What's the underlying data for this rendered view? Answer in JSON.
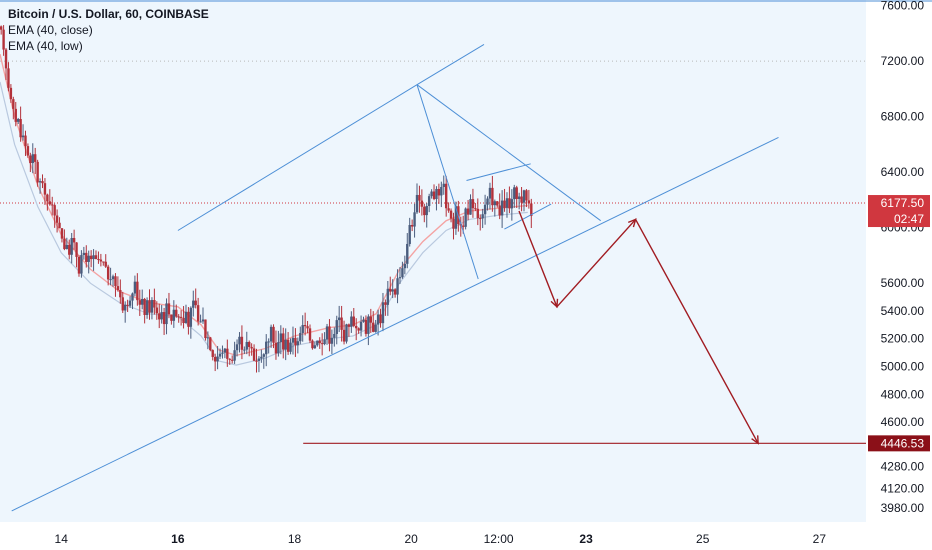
{
  "legend": {
    "title": "Bitcoin / U.S. Dollar, 60, COINBASE",
    "ema1": "EMA (40, close)",
    "ema2": "EMA (40, low)"
  },
  "colors": {
    "chart_bg": "#eef6fd",
    "axis_bg": "#ffffff",
    "up_candle": "#4a5d7e",
    "down_candle": "#b3313a",
    "ema_close": "#f4a3a3",
    "ema_low": "#b9c9df",
    "trendline": "#4d8fd6",
    "arrow": "#a11c22",
    "current_price_line": "#d0373f",
    "current_price_tag": "#d0373f",
    "target_tag": "#8b1018",
    "grid_dotted": "#b9b9b9"
  },
  "chart_data": {
    "type": "candlestick",
    "title": "Bitcoin / U.S. Dollar, 60, COINBASE",
    "xlabel": "",
    "ylabel": "",
    "x_ticks": [
      "14",
      "16",
      "18",
      "20",
      "12:00",
      "23",
      "25",
      "27"
    ],
    "y_ticks": [
      3980.0,
      4120.0,
      4280.0,
      4600.0,
      4800.0,
      5000.0,
      5200.0,
      5400.0,
      5600.0,
      6000.0,
      6400.0,
      6800.0,
      7200.0,
      7600.0
    ],
    "ylim": [
      3880,
      7640
    ],
    "x_range_days": [
      12.95,
      27.8
    ],
    "current_price": {
      "value": 6177.5,
      "label": "6177.50",
      "countdown": "02:47"
    },
    "target_price": {
      "value": 4446.53,
      "label": "4446.53"
    },
    "dotted_level": 7200,
    "series": [
      {
        "name": "EMA (40, close)",
        "points": [
          [
            12.95,
            7250
          ],
          [
            13.2,
            6800
          ],
          [
            13.6,
            6300
          ],
          [
            14.0,
            5950
          ],
          [
            14.5,
            5700
          ],
          [
            15.0,
            5540
          ],
          [
            15.5,
            5460
          ],
          [
            16.0,
            5430
          ],
          [
            16.4,
            5300
          ],
          [
            16.7,
            5120
          ],
          [
            17.0,
            5080
          ],
          [
            17.5,
            5130
          ],
          [
            18.0,
            5220
          ],
          [
            18.6,
            5280
          ],
          [
            19.0,
            5300
          ],
          [
            19.4,
            5380
          ],
          [
            19.8,
            5700
          ],
          [
            20.2,
            5900
          ],
          [
            20.6,
            6050
          ],
          [
            21.0,
            6120
          ],
          [
            21.5,
            6140
          ],
          [
            22.0,
            6160
          ]
        ]
      },
      {
        "name": "EMA (40, low)",
        "points": [
          [
            12.95,
            7050
          ],
          [
            13.2,
            6600
          ],
          [
            13.6,
            6150
          ],
          [
            14.0,
            5820
          ],
          [
            14.5,
            5600
          ],
          [
            15.0,
            5460
          ],
          [
            15.5,
            5380
          ],
          [
            16.0,
            5360
          ],
          [
            16.4,
            5220
          ],
          [
            16.7,
            5040
          ],
          [
            17.0,
            5010
          ],
          [
            17.5,
            5060
          ],
          [
            18.0,
            5150
          ],
          [
            18.6,
            5200
          ],
          [
            19.0,
            5220
          ],
          [
            19.4,
            5300
          ],
          [
            19.8,
            5600
          ],
          [
            20.2,
            5820
          ],
          [
            20.6,
            5980
          ],
          [
            21.0,
            6060
          ],
          [
            21.5,
            6090
          ],
          [
            22.0,
            6110
          ]
        ]
      }
    ],
    "annotations": {
      "channel_upper": [
        [
          16.0,
          5980
        ],
        [
          20.1,
          7030
        ],
        [
          21.25,
          7320
        ]
      ],
      "channel_lower": [
        [
          13.15,
          3960
        ],
        [
          26.3,
          6650
        ]
      ],
      "triangle_upper": [
        [
          20.1,
          7030
        ],
        [
          23.25,
          6050
        ]
      ],
      "triangle_lower": [
        [
          20.1,
          7030
        ],
        [
          21.15,
          5630
        ]
      ],
      "wedge_upper": [
        [
          20.95,
          6340
        ],
        [
          22.05,
          6460
        ]
      ],
      "wedge_lower": [
        [
          21.6,
          5990
        ],
        [
          22.4,
          6170
        ]
      ],
      "projection_arrow": [
        [
          21.85,
          6120
        ],
        [
          22.5,
          5430
        ],
        [
          23.85,
          6060
        ],
        [
          25.95,
          4446.53
        ]
      ],
      "target_line": [
        [
          18.15,
          4446.53
        ],
        [
          27.8,
          4446.53
        ]
      ]
    }
  }
}
